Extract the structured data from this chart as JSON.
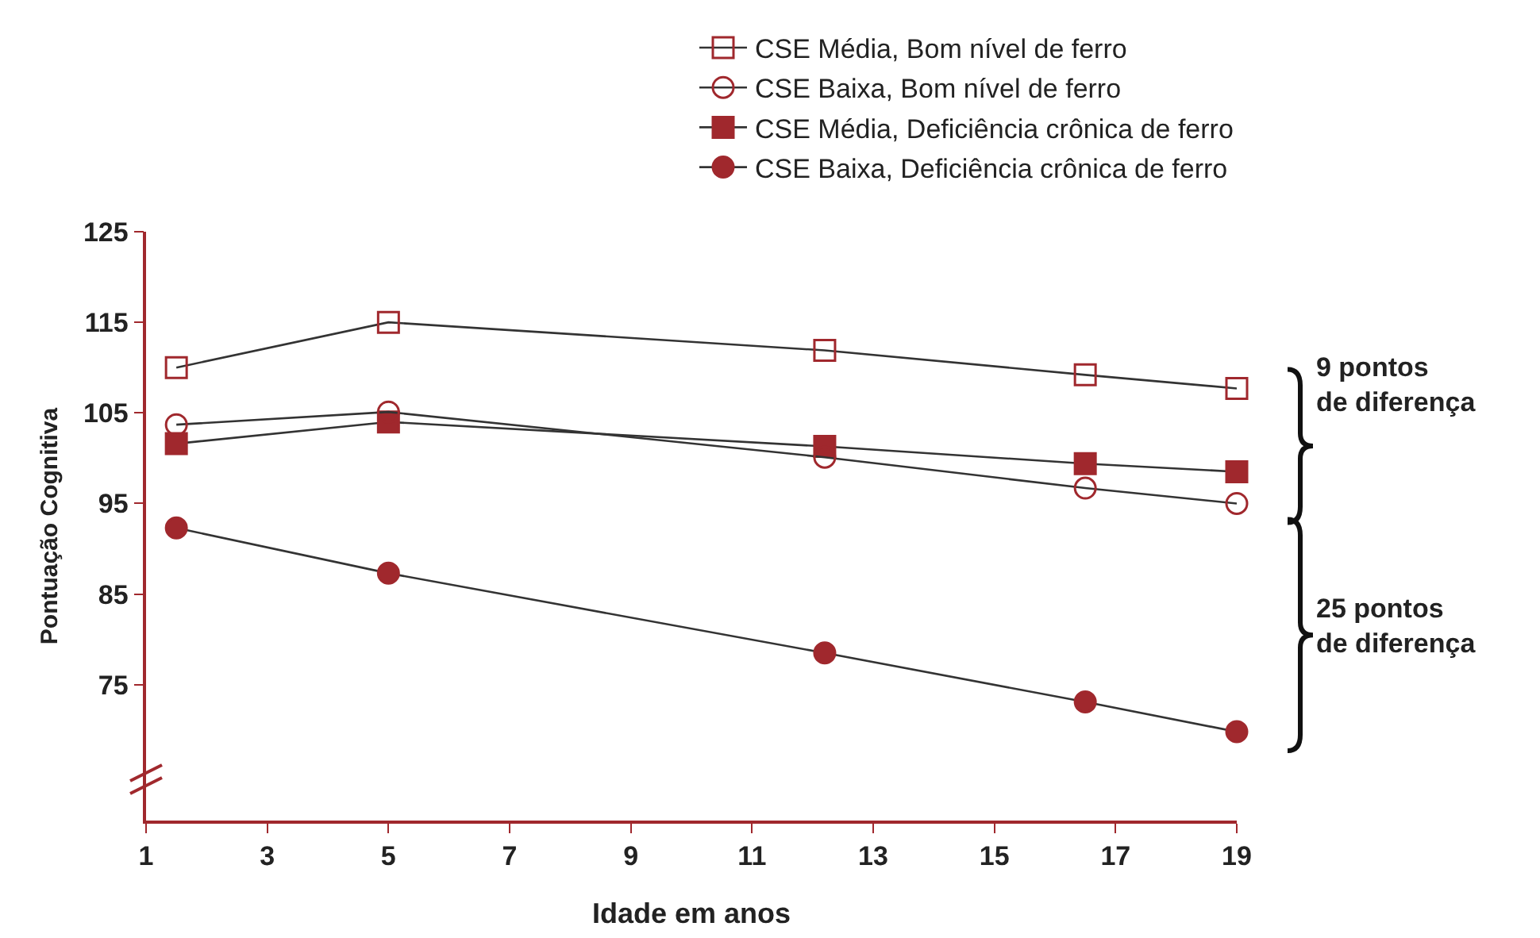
{
  "chart_data": {
    "type": "line",
    "xlabel": "Idade em anos",
    "ylabel": "Pontuação Cognitiva",
    "x": [
      1.5,
      5,
      12.2,
      16.5,
      19
    ],
    "series": [
      {
        "name": "CSE Média, Bom nível de ferro",
        "color": "#a0282d",
        "marker": "square-open",
        "values": [
          110,
          115,
          111.9,
          109.2,
          107.7
        ]
      },
      {
        "name": "CSE Baixa, Bom nível de ferro",
        "color": "#a0282d",
        "marker": "circle-open",
        "values": [
          103.7,
          105.1,
          100.1,
          96.7,
          95
        ]
      },
      {
        "name": "CSE Média, Deficiência crônica de ferro",
        "color": "#a0282d",
        "marker": "square",
        "values": [
          101.6,
          104,
          101.3,
          99.4,
          98.5
        ]
      },
      {
        "name": "CSE Baixa, Deficiência crônica de ferro",
        "color": "#a0282d",
        "marker": "circle",
        "values": [
          92.3,
          87.3,
          78.5,
          73.1,
          69.8
        ]
      }
    ],
    "xlim": [
      1,
      19
    ],
    "xticks": [
      1,
      3,
      5,
      7,
      9,
      11,
      13,
      15,
      17,
      19
    ],
    "ylim": [
      60,
      125
    ],
    "yticks": [
      75,
      85,
      95,
      105,
      115,
      125
    ],
    "annotations": [
      "9 pontos\nde diferença",
      "25 pontos\nde diferença"
    ],
    "grid": false,
    "legend": "top right"
  }
}
